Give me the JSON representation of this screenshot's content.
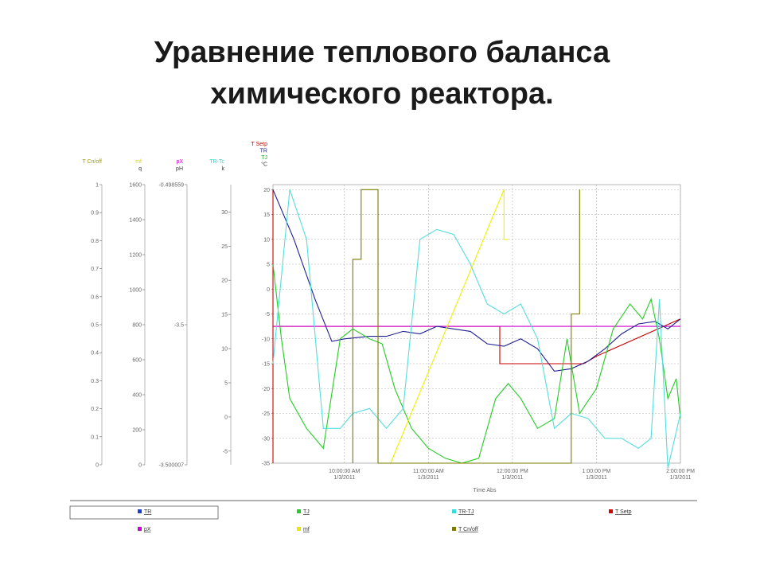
{
  "slide": {
    "title_line1": "Уравнение теплового баланса",
    "title_line2": "химического реактора."
  },
  "chart_data": {
    "type": "line",
    "xlabel": "Time Abs",
    "grid": true,
    "x_ticks": [
      {
        "t": 0.0,
        "line1": "10:00:00 AM",
        "line2": "1/3/2011"
      },
      {
        "t": 1.0,
        "line1": "11:00:00 AM",
        "line2": "1/3/2011"
      },
      {
        "t": 2.0,
        "line1": "12:00:00 PM",
        "line2": "1/3/2011"
      },
      {
        "t": 3.0,
        "line1": "1:00:00 PM",
        "line2": "1/3/2011"
      },
      {
        "t": 4.0,
        "line1": "2:00:00 PM",
        "line2": "1/3/2011"
      }
    ],
    "xlim": [
      -0.85,
      4.0
    ],
    "main_axis": {
      "top_labels": [
        "T Setp",
        "TR",
        "TJ",
        "°C"
      ],
      "ylim": [
        -35,
        21
      ],
      "ticks": [
        20,
        15,
        10,
        5,
        0,
        -5,
        -10,
        -15,
        -20,
        -25,
        -30,
        -35
      ],
      "tick_labels": [
        "20",
        "15",
        "10",
        "5",
        "0",
        "-5",
        "-10",
        "-15",
        "-20",
        "-25",
        "-30",
        "-35"
      ]
    },
    "side_axes": [
      {
        "name": "T Cn/off",
        "unit": "",
        "color": "#a0a000",
        "ticks": [
          1,
          0.9,
          0.8,
          0.7,
          0.6,
          0.5,
          0.4,
          0.3,
          0.2,
          0.1,
          0
        ],
        "tick_labels": [
          "1",
          "0.9",
          "0.8",
          "0.7",
          "0.6",
          "0.5",
          "0.4",
          "0.3",
          "0.2",
          "0.1",
          "0"
        ]
      },
      {
        "name": "mf",
        "unit": "q",
        "color": "#d8d800",
        "ticks": [
          1600,
          1400,
          1200,
          1000,
          800,
          600,
          400,
          200,
          0
        ],
        "tick_labels": [
          "1600",
          "1400",
          "1200",
          "1000",
          "800",
          "600",
          "400",
          "200",
          "0"
        ]
      },
      {
        "name": "pX",
        "unit": "pH",
        "color": "#cc00cc",
        "ticks": [
          1,
          0.5,
          0
        ],
        "tick_labels": [
          "-0.498559",
          "-3.5",
          "-3.500007"
        ]
      },
      {
        "name": "TR-Tc",
        "unit": "k",
        "color": "#33cccc",
        "ticks": [
          30,
          25,
          20,
          15,
          10,
          5,
          0,
          -5
        ],
        "tick_labels": [
          "30",
          "25",
          "20",
          "15",
          "10",
          "5",
          "0",
          "-5"
        ],
        "ylim": [
          -7,
          34
        ]
      }
    ],
    "series": [
      {
        "name": "T Setp",
        "color": "#cc0000",
        "axis": "main",
        "x": [
          -0.85,
          -0.85,
          -0.85,
          1.85,
          1.85,
          2.85,
          3.0,
          4.0
        ],
        "y": [
          -35,
          20,
          -7.5,
          -7.5,
          -15,
          -15,
          -13.5,
          -6
        ]
      },
      {
        "name": "pX",
        "color": "#cc00cc",
        "axis": "main",
        "x": [
          -0.85,
          4.0
        ],
        "y": [
          -7.5,
          -7.5
        ]
      },
      {
        "name": "TR",
        "color": "#1f1f8f",
        "axis": "main",
        "x": [
          -0.85,
          -0.6,
          -0.35,
          -0.15,
          0.0,
          0.3,
          0.5,
          0.7,
          0.9,
          1.1,
          1.3,
          1.5,
          1.7,
          1.9,
          2.1,
          2.3,
          2.5,
          2.7,
          2.9,
          3.1,
          3.3,
          3.5,
          3.7,
          3.85,
          4.0
        ],
        "y": [
          20,
          10,
          -2,
          -10.5,
          -10,
          -9.5,
          -9.5,
          -8.5,
          -9,
          -7.5,
          -8,
          -8.5,
          -11,
          -11.5,
          -10,
          -12,
          -16.5,
          -16,
          -14.5,
          -12,
          -9,
          -7,
          -6.5,
          -8,
          -6
        ]
      },
      {
        "name": "TJ",
        "color": "#22cc22",
        "axis": "main",
        "x": [
          -0.85,
          -0.75,
          -0.65,
          -0.45,
          -0.25,
          -0.05,
          0.1,
          0.3,
          0.45,
          0.6,
          0.8,
          1.0,
          1.2,
          1.4,
          1.6,
          1.8,
          1.95,
          2.1,
          2.3,
          2.5,
          2.65,
          2.8,
          3.0,
          3.2,
          3.4,
          3.55,
          3.65,
          3.75,
          3.85,
          3.95,
          4.0
        ],
        "y": [
          5,
          -10,
          -22,
          -28,
          -32,
          -10,
          -8,
          -10,
          -11,
          -20,
          -28,
          -32,
          -34,
          -35,
          -34,
          -22,
          -19,
          -22,
          -28,
          -26,
          -10,
          -25,
          -20,
          -8,
          -3,
          -6,
          -2,
          -10,
          -22,
          -18,
          -26
        ]
      },
      {
        "name": "TR-TJ",
        "color": "#55dddd",
        "axis": "main",
        "x": [
          -0.85,
          -0.65,
          -0.45,
          -0.25,
          -0.05,
          0.1,
          0.3,
          0.5,
          0.7,
          0.9,
          1.1,
          1.3,
          1.5,
          1.7,
          1.9,
          2.1,
          2.3,
          2.5,
          2.7,
          2.9,
          3.1,
          3.3,
          3.5,
          3.65,
          3.75,
          3.85,
          4.0
        ],
        "y": [
          -15,
          20,
          10,
          -28,
          -28,
          -25,
          -24,
          -28,
          -24,
          10,
          12,
          11,
          5,
          -3,
          -5,
          -3,
          -10,
          -28,
          -25,
          -26,
          -30,
          -30,
          -32,
          -30,
          -2,
          -36,
          -25
        ]
      },
      {
        "name": "mf",
        "color": "#f0f000",
        "axis": "main",
        "x": [
          0.55,
          1.9,
          1.9,
          1.95
        ],
        "y": [
          -35,
          20,
          10,
          10
        ]
      },
      {
        "name": "T Cn/off",
        "color": "#7a7a00",
        "axis": "main",
        "x": [
          0.1,
          0.1,
          0.2,
          0.2,
          0.4,
          0.4,
          2.7,
          2.7,
          2.8,
          2.8,
          2.8
        ],
        "y": [
          -35,
          6,
          6,
          20,
          20,
          -35,
          -35,
          -5,
          -5,
          20,
          6
        ]
      }
    ],
    "legend": [
      {
        "label": "TR",
        "color": "#1a3fd6"
      },
      {
        "label": "TJ",
        "color": "#22cc22"
      },
      {
        "label": "TR-TJ",
        "color": "#33dddd"
      },
      {
        "label": "T Setp",
        "color": "#dd0000"
      },
      {
        "label": "pX",
        "color": "#cc00cc"
      },
      {
        "label": "mf",
        "color": "#e8e800"
      },
      {
        "label": "T Cn/off",
        "color": "#7a7a00"
      }
    ]
  }
}
